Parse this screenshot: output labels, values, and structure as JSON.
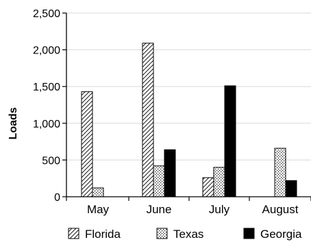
{
  "chart_data": {
    "type": "bar",
    "title": "",
    "xlabel": "",
    "ylabel": "Loads",
    "ylim": [
      0,
      2500
    ],
    "yticks": [
      0,
      500,
      1000,
      1500,
      2000,
      2500
    ],
    "ytick_labels": [
      "0",
      "500",
      "1,000",
      "1,500",
      "2,000",
      "2,500"
    ],
    "grid": "horizontal",
    "legend": "bottom",
    "categories": [
      "May",
      "June",
      "July",
      "August"
    ],
    "series": [
      {
        "name": "Florida",
        "values": [
          1430,
          2090,
          260,
          0
        ],
        "pattern": "diagonal-hatch"
      },
      {
        "name": "Texas",
        "values": [
          120,
          420,
          400,
          660
        ],
        "pattern": "dots"
      },
      {
        "name": "Georgia",
        "values": [
          0,
          640,
          1510,
          220
        ],
        "pattern": "solid-black"
      }
    ],
    "colors": {
      "black": "#000000",
      "grid": "#d9d9d9",
      "background": "#ffffff"
    }
  }
}
